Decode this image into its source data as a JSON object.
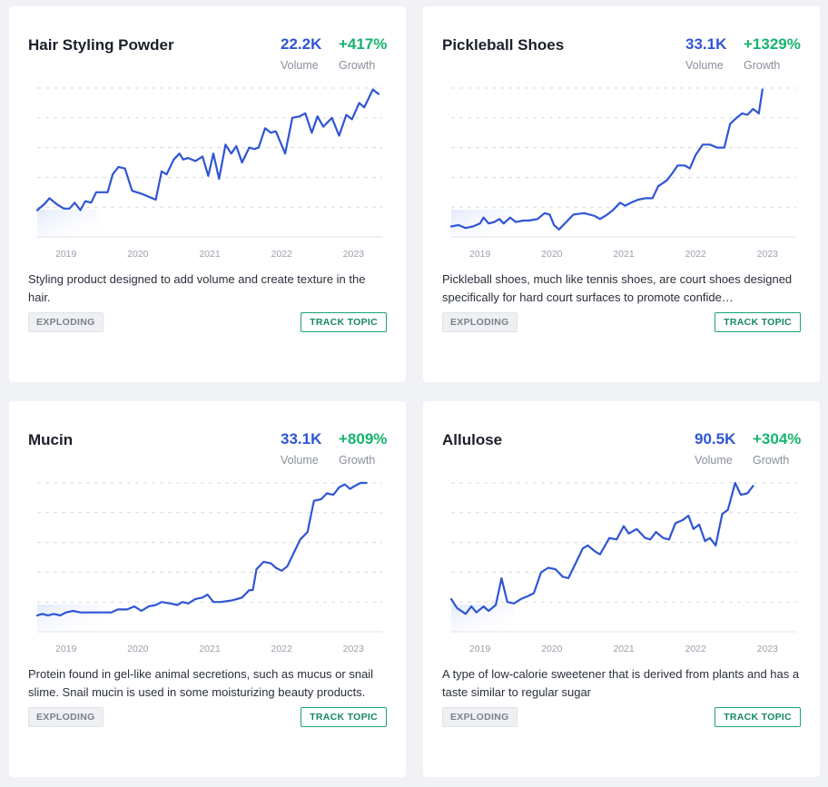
{
  "cards": [
    {
      "title": "Hair Styling Powder",
      "volume": "22.2K",
      "volume_label": "Volume",
      "growth": "+417%",
      "growth_label": "Growth",
      "description": "Styling product designed to add volume and create texture in the hair.",
      "badge": "EXPLODING",
      "track_label": "TRACK TOPIC"
    },
    {
      "title": "Pickleball Shoes",
      "volume": "33.1K",
      "volume_label": "Volume",
      "growth": "+1329%",
      "growth_label": "Growth",
      "description": "Pickleball shoes, much like tennis shoes, are court shoes designed specifically for hard court surfaces to promote confide…",
      "badge": "EXPLODING",
      "track_label": "TRACK TOPIC"
    },
    {
      "title": "Mucin",
      "volume": "33.1K",
      "volume_label": "Volume",
      "growth": "+809%",
      "growth_label": "Growth",
      "description": "Protein found in gel-like animal secretions, such as mucus or snail slime. Snail mucin is used in some moisturizing beauty products.",
      "badge": "EXPLODING",
      "track_label": "TRACK TOPIC"
    },
    {
      "title": "Allulose",
      "volume": "90.5K",
      "volume_label": "Volume",
      "growth": "+304%",
      "growth_label": "Growth",
      "description": "A type of low-calorie sweetener that is derived from plants and has a taste similar to regular sugar",
      "badge": "EXPLODING",
      "track_label": "TRACK TOPIC"
    }
  ],
  "colors": {
    "line": "#2f55d4",
    "volume": "#2f55d4",
    "growth": "#16b36e",
    "grid": "#d5d9e0",
    "track": "#13895f"
  },
  "chart_data": [
    {
      "type": "line",
      "title": "Hair Styling Powder",
      "x_ticks": [
        "2019",
        "2020",
        "2021",
        "2022",
        "2023"
      ],
      "x_range": [
        2018.6,
        2023.4
      ],
      "ylim": [
        0,
        100
      ],
      "series": [
        {
          "values": [
            [
              2018.6,
              18
            ],
            [
              2018.7,
              22
            ],
            [
              2018.77,
              26
            ],
            [
              2018.87,
              22
            ],
            [
              2018.97,
              19
            ],
            [
              2019.05,
              19
            ],
            [
              2019.12,
              23
            ],
            [
              2019.2,
              18
            ],
            [
              2019.27,
              24
            ],
            [
              2019.35,
              23
            ],
            [
              2019.42,
              30
            ],
            [
              2019.5,
              30
            ],
            [
              2019.58,
              30
            ],
            [
              2019.65,
              42
            ],
            [
              2019.73,
              47
            ],
            [
              2019.82,
              46
            ],
            [
              2019.92,
              31
            ],
            [
              2020.05,
              29
            ],
            [
              2020.15,
              27
            ],
            [
              2020.25,
              25
            ],
            [
              2020.33,
              44
            ],
            [
              2020.4,
              42
            ],
            [
              2020.5,
              52
            ],
            [
              2020.58,
              56
            ],
            [
              2020.63,
              52
            ],
            [
              2020.7,
              53
            ],
            [
              2020.8,
              51
            ],
            [
              2020.9,
              54
            ],
            [
              2020.98,
              41
            ],
            [
              2021.05,
              56
            ],
            [
              2021.13,
              39
            ],
            [
              2021.22,
              62
            ],
            [
              2021.3,
              56
            ],
            [
              2021.37,
              61
            ],
            [
              2021.45,
              50
            ],
            [
              2021.55,
              60
            ],
            [
              2021.62,
              59
            ],
            [
              2021.68,
              60
            ],
            [
              2021.77,
              73
            ],
            [
              2021.85,
              70
            ],
            [
              2021.92,
              71
            ],
            [
              2022.05,
              56
            ],
            [
              2022.15,
              80
            ],
            [
              2022.25,
              81
            ],
            [
              2022.33,
              83
            ],
            [
              2022.42,
              70
            ],
            [
              2022.5,
              81
            ],
            [
              2022.58,
              74
            ],
            [
              2022.7,
              80
            ],
            [
              2022.8,
              68
            ],
            [
              2022.9,
              82
            ],
            [
              2022.98,
              79
            ],
            [
              2023.08,
              90
            ],
            [
              2023.15,
              87
            ],
            [
              2023.27,
              99
            ],
            [
              2023.35,
              96
            ]
          ]
        }
      ]
    },
    {
      "type": "line",
      "title": "Pickleball Shoes",
      "x_ticks": [
        "2019",
        "2020",
        "2021",
        "2022",
        "2023"
      ],
      "x_range": [
        2018.6,
        2023.4
      ],
      "ylim": [
        0,
        100
      ],
      "series": [
        {
          "values": [
            [
              2018.6,
              7
            ],
            [
              2018.7,
              8
            ],
            [
              2018.8,
              6
            ],
            [
              2018.9,
              7
            ],
            [
              2019.0,
              9
            ],
            [
              2019.05,
              13
            ],
            [
              2019.12,
              9
            ],
            [
              2019.2,
              10
            ],
            [
              2019.27,
              12
            ],
            [
              2019.33,
              9
            ],
            [
              2019.42,
              13
            ],
            [
              2019.5,
              10
            ],
            [
              2019.6,
              11
            ],
            [
              2019.68,
              11
            ],
            [
              2019.8,
              12
            ],
            [
              2019.9,
              16
            ],
            [
              2019.97,
              15
            ],
            [
              2020.03,
              8
            ],
            [
              2020.1,
              5
            ],
            [
              2020.2,
              10
            ],
            [
              2020.3,
              15
            ],
            [
              2020.45,
              16
            ],
            [
              2020.6,
              14
            ],
            [
              2020.67,
              12
            ],
            [
              2020.77,
              15
            ],
            [
              2020.85,
              18
            ],
            [
              2020.95,
              23
            ],
            [
              2021.02,
              21
            ],
            [
              2021.1,
              23
            ],
            [
              2021.2,
              25
            ],
            [
              2021.3,
              26
            ],
            [
              2021.4,
              26
            ],
            [
              2021.48,
              34
            ],
            [
              2021.6,
              38
            ],
            [
              2021.68,
              43
            ],
            [
              2021.75,
              48
            ],
            [
              2021.85,
              48
            ],
            [
              2021.92,
              46
            ],
            [
              2022.0,
              55
            ],
            [
              2022.1,
              62
            ],
            [
              2022.2,
              62
            ],
            [
              2022.3,
              60
            ],
            [
              2022.4,
              60
            ],
            [
              2022.48,
              76
            ],
            [
              2022.57,
              80
            ],
            [
              2022.65,
              83
            ],
            [
              2022.72,
              82
            ],
            [
              2022.8,
              86
            ],
            [
              2022.88,
              83
            ],
            [
              2022.93,
              99
            ]
          ]
        }
      ]
    },
    {
      "type": "line",
      "title": "Mucin",
      "x_ticks": [
        "2019",
        "2020",
        "2021",
        "2022",
        "2023"
      ],
      "x_range": [
        2018.6,
        2023.4
      ],
      "ylim": [
        0,
        100
      ],
      "series": [
        {
          "values": [
            [
              2018.6,
              11
            ],
            [
              2018.67,
              12
            ],
            [
              2018.75,
              11
            ],
            [
              2018.83,
              12
            ],
            [
              2018.92,
              11
            ],
            [
              2019.0,
              13
            ],
            [
              2019.1,
              14
            ],
            [
              2019.2,
              13
            ],
            [
              2019.35,
              13
            ],
            [
              2019.5,
              13
            ],
            [
              2019.63,
              13
            ],
            [
              2019.72,
              15
            ],
            [
              2019.85,
              15
            ],
            [
              2019.95,
              17
            ],
            [
              2020.05,
              14
            ],
            [
              2020.15,
              17
            ],
            [
              2020.25,
              18
            ],
            [
              2020.33,
              20
            ],
            [
              2020.45,
              19
            ],
            [
              2020.55,
              18
            ],
            [
              2020.62,
              20
            ],
            [
              2020.7,
              19
            ],
            [
              2020.8,
              22
            ],
            [
              2020.9,
              23
            ],
            [
              2020.97,
              25
            ],
            [
              2021.05,
              20
            ],
            [
              2021.15,
              20
            ],
            [
              2021.3,
              21
            ],
            [
              2021.38,
              22
            ],
            [
              2021.45,
              23
            ],
            [
              2021.55,
              28
            ],
            [
              2021.6,
              28
            ],
            [
              2021.65,
              42
            ],
            [
              2021.75,
              47
            ],
            [
              2021.85,
              46
            ],
            [
              2021.92,
              43
            ],
            [
              2022.0,
              41
            ],
            [
              2022.08,
              44
            ],
            [
              2022.18,
              54
            ],
            [
              2022.26,
              62
            ],
            [
              2022.36,
              67
            ],
            [
              2022.45,
              88
            ],
            [
              2022.55,
              89
            ],
            [
              2022.63,
              93
            ],
            [
              2022.72,
              92
            ],
            [
              2022.8,
              97
            ],
            [
              2022.88,
              99
            ],
            [
              2022.95,
              96
            ],
            [
              2023.02,
              98
            ],
            [
              2023.1,
              100
            ],
            [
              2023.18,
              100
            ]
          ]
        }
      ]
    },
    {
      "type": "line",
      "title": "Allulose",
      "x_ticks": [
        "2019",
        "2020",
        "2021",
        "2022",
        "2023"
      ],
      "x_range": [
        2018.6,
        2023.4
      ],
      "ylim": [
        0,
        100
      ],
      "series": [
        {
          "values": [
            [
              2018.6,
              22
            ],
            [
              2018.68,
              16
            ],
            [
              2018.8,
              12
            ],
            [
              2018.88,
              17
            ],
            [
              2018.95,
              13
            ],
            [
              2019.05,
              17
            ],
            [
              2019.12,
              14
            ],
            [
              2019.22,
              18
            ],
            [
              2019.3,
              36
            ],
            [
              2019.38,
              20
            ],
            [
              2019.47,
              19
            ],
            [
              2019.57,
              22
            ],
            [
              2019.67,
              24
            ],
            [
              2019.75,
              26
            ],
            [
              2019.85,
              40
            ],
            [
              2019.95,
              43
            ],
            [
              2020.05,
              42
            ],
            [
              2020.15,
              37
            ],
            [
              2020.23,
              36
            ],
            [
              2020.33,
              46
            ],
            [
              2020.43,
              56
            ],
            [
              2020.5,
              58
            ],
            [
              2020.6,
              54
            ],
            [
              2020.67,
              52
            ],
            [
              2020.73,
              57
            ],
            [
              2020.8,
              63
            ],
            [
              2020.9,
              62
            ],
            [
              2021.0,
              71
            ],
            [
              2021.07,
              66
            ],
            [
              2021.18,
              69
            ],
            [
              2021.3,
              63
            ],
            [
              2021.37,
              62
            ],
            [
              2021.45,
              67
            ],
            [
              2021.55,
              63
            ],
            [
              2021.63,
              62
            ],
            [
              2021.72,
              73
            ],
            [
              2021.82,
              75
            ],
            [
              2021.9,
              78
            ],
            [
              2021.97,
              69
            ],
            [
              2022.05,
              72
            ],
            [
              2022.13,
              61
            ],
            [
              2022.2,
              63
            ],
            [
              2022.28,
              58
            ],
            [
              2022.37,
              79
            ],
            [
              2022.45,
              82
            ],
            [
              2022.55,
              100
            ],
            [
              2022.63,
              92
            ],
            [
              2022.72,
              93
            ],
            [
              2022.8,
              98
            ]
          ]
        }
      ]
    }
  ]
}
